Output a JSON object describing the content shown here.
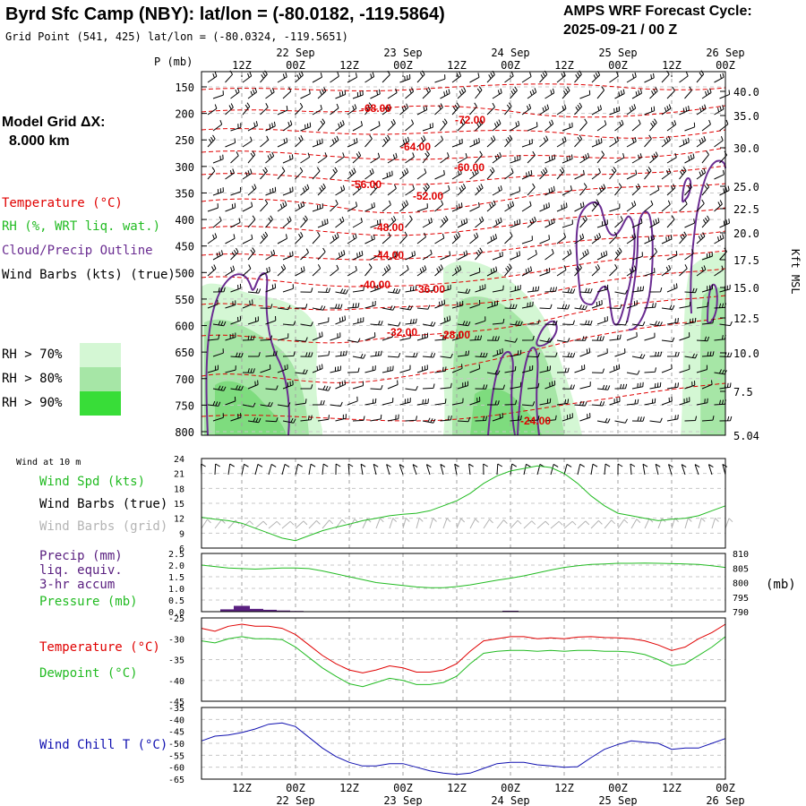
{
  "header": {
    "title": "Byrd Sfc Camp (NBY):  lat/lon = (-80.0182, -119.5864)",
    "subtitle": "Grid Point (541, 425) lat/lon = (-80.0324, -119.5651)",
    "cycle_line1": "AMPS WRF Forecast Cycle:",
    "cycle_line2": "2025-09-21 / 00  Z"
  },
  "colors": {
    "temperature": "#e00000",
    "rh": "#22bb22",
    "cloud": "#6a2c91",
    "wind": "#000000",
    "wind_grid": "#b4b4b4",
    "precip": "#5a2080",
    "pressure": "#22bb22",
    "dewpoint": "#22bb22",
    "wind_chill": "#1010b0",
    "rh70": "#d4f7d4",
    "rh80": "#a6e6a6",
    "rh90": "#38dd38"
  },
  "time_axis": {
    "top_labels": [
      "12Z",
      "00Z",
      "12Z",
      "00Z",
      "12Z",
      "00Z",
      "12Z",
      "00Z",
      "12Z",
      "00Z"
    ],
    "top_dates": [
      "22 Sep",
      "23 Sep",
      "24 Sep",
      "25 Sep",
      "26 Sep"
    ],
    "bottom_labels": [
      "12Z",
      "00Z",
      "12Z",
      "00Z",
      "12Z",
      "00Z",
      "12Z",
      "00Z",
      "12Z",
      "00Z"
    ],
    "bottom_dates": [
      "22 Sep",
      "23 Sep",
      "24 Sep",
      "25 Sep",
      "26 Sep"
    ],
    "start_hour": 3,
    "end_hour": 120
  },
  "upper_panel": {
    "p_axis_label": "P (mb)",
    "p_ticks": [
      "150",
      "200",
      "250",
      "300",
      "350",
      "400",
      "450",
      "500",
      "550",
      "600",
      "650",
      "700",
      "750",
      "800"
    ],
    "h_ticks": [
      "40.0",
      "35.0",
      "30.0",
      "25.0",
      "22.5",
      "20.0",
      "17.5",
      "15.0",
      "12.5",
      "10.0",
      "7.5",
      "5.04"
    ],
    "h_axis_label": "Kft MSL",
    "model_grid_line1": "Model Grid ΔX:",
    "model_grid_line2": "8.000 km",
    "legend_temperature": "Temperature (°C)",
    "legend_rh": "RH (%, WRT liq. wat.)",
    "legend_cloud": "Cloud/Precip Outline",
    "legend_wind": "Wind Barbs (kts) (true)",
    "rh_key": [
      "RH > 70%",
      "RH > 80%",
      "RH > 90%"
    ],
    "contour_labels": [
      "-68.00",
      "-72.00",
      "-64.00",
      "-60.00",
      "-56.00",
      "-52.00",
      "-48.00",
      "-44.00",
      "-40.00",
      "-36.00",
      "-32.00",
      "-28.00",
      "-24.00"
    ]
  },
  "wind_panel": {
    "title": "Wind at 10 m",
    "label_speed": "Wind Spd (kts)",
    "label_barbs_true": "Wind Barbs (true)",
    "label_barbs_grid": "Wind Barbs (grid)",
    "y_ticks": [
      "24",
      "21",
      "18",
      "15",
      "12",
      "9",
      "6"
    ]
  },
  "precip_panel": {
    "label1": "Precip (mm)",
    "label2": "liq. equiv.",
    "label3": "3-hr accum",
    "label4": "Pressure (mb)",
    "y_ticks_left": [
      "2.5",
      "2.0",
      "1.5",
      "1.0",
      "0.5",
      "0.0"
    ],
    "y_ticks_right": [
      "810",
      "805",
      "800",
      "795",
      "790"
    ],
    "right_unit": "(mb)"
  },
  "temp_panel": {
    "label_temp": "Temperature (°C)",
    "label_dew": "Dewpoint (°C)",
    "y_ticks": [
      "-25",
      "-30",
      "-35",
      "-40",
      "-45"
    ]
  },
  "chill_panel": {
    "label": "Wind Chill T (°C)",
    "y_ticks": [
      "-35",
      "-40",
      "-45",
      "-50",
      "-55",
      "-60",
      "-65"
    ]
  },
  "chart_data": [
    {
      "type": "line",
      "panel": "wind_speed",
      "x_hours": [
        3,
        6,
        9,
        12,
        15,
        18,
        21,
        24,
        27,
        30,
        33,
        36,
        39,
        42,
        45,
        48,
        51,
        54,
        57,
        60,
        63,
        66,
        69,
        72,
        75,
        78,
        81,
        84,
        87,
        90,
        93,
        96,
        99,
        102,
        105,
        108,
        111,
        114,
        117,
        120
      ],
      "series": [
        {
          "name": "Wind Spd (kts)",
          "values": [
            12.2,
            11.8,
            11.5,
            11.0,
            10.0,
            9.0,
            8.0,
            7.5,
            8.5,
            9.5,
            10.2,
            10.8,
            11.5,
            12.0,
            12.5,
            12.8,
            13.0,
            13.5,
            14.5,
            15.5,
            17.0,
            19.0,
            20.5,
            21.5,
            22.0,
            22.5,
            22.2,
            21.0,
            19.0,
            16.5,
            14.5,
            13.0,
            12.5,
            12.0,
            11.5,
            11.8,
            12.0,
            12.5,
            13.5,
            14.5
          ]
        }
      ],
      "ylim": [
        6,
        24
      ]
    },
    {
      "type": "line",
      "panel": "pressure_precip",
      "x_hours": [
        3,
        6,
        9,
        12,
        15,
        18,
        21,
        24,
        27,
        30,
        33,
        36,
        39,
        42,
        45,
        48,
        51,
        54,
        57,
        60,
        63,
        66,
        69,
        72,
        75,
        78,
        81,
        84,
        87,
        90,
        93,
        96,
        99,
        102,
        105,
        108,
        111,
        114,
        117,
        120
      ],
      "series": [
        {
          "name": "Pressure (mb)",
          "values": [
            806.0,
            805.5,
            805.0,
            804.8,
            804.6,
            804.8,
            805.0,
            805.0,
            804.8,
            804.0,
            803.0,
            802.0,
            801.0,
            800.0,
            799.5,
            799.0,
            798.5,
            798.2,
            798.2,
            798.6,
            799.2,
            800.0,
            800.8,
            801.5,
            802.3,
            803.3,
            804.3,
            805.2,
            805.8,
            806.2,
            806.4,
            806.6,
            806.6,
            806.7,
            806.6,
            806.5,
            806.4,
            806.2,
            805.8,
            805.2
          ]
        }
      ],
      "precip_bars": [
        {
          "x_hours": 9,
          "value": 0.1
        },
        {
          "x_hours": 12,
          "value": 0.25
        },
        {
          "x_hours": 15,
          "value": 0.12
        },
        {
          "x_hours": 18,
          "value": 0.08
        },
        {
          "x_hours": 21,
          "value": 0.05
        },
        {
          "x_hours": 24,
          "value": 0.03
        },
        {
          "x_hours": 72,
          "value": 0.04
        }
      ],
      "ylim_left": [
        0,
        2.5
      ],
      "ylim_right": [
        790,
        810
      ]
    },
    {
      "type": "line",
      "panel": "temperature_dewpoint",
      "x_hours": [
        3,
        6,
        9,
        12,
        15,
        18,
        21,
        24,
        27,
        30,
        33,
        36,
        39,
        42,
        45,
        48,
        51,
        54,
        57,
        60,
        63,
        66,
        69,
        72,
        75,
        78,
        81,
        84,
        87,
        90,
        93,
        96,
        99,
        102,
        105,
        108,
        111,
        114,
        117,
        120
      ],
      "series": [
        {
          "name": "Temperature (°C)",
          "values": [
            -27.5,
            -28.2,
            -27.0,
            -26.5,
            -27.0,
            -27.0,
            -27.5,
            -29.0,
            -31.5,
            -34.0,
            -36.0,
            -37.5,
            -38.2,
            -37.5,
            -36.5,
            -37.0,
            -38.0,
            -38.0,
            -37.5,
            -36.0,
            -33.0,
            -30.5,
            -30.0,
            -29.5,
            -29.5,
            -30.0,
            -29.8,
            -30.0,
            -29.6,
            -29.5,
            -29.7,
            -29.8,
            -30.0,
            -30.5,
            -31.5,
            -32.8,
            -32.0,
            -30.0,
            -28.5,
            -26.5
          ]
        },
        {
          "name": "Dewpoint (°C)",
          "values": [
            -30.5,
            -31.0,
            -30.0,
            -29.5,
            -30.0,
            -30.0,
            -30.2,
            -32.0,
            -34.5,
            -37.0,
            -39.0,
            -40.8,
            -41.5,
            -40.5,
            -39.5,
            -40.0,
            -41.0,
            -41.0,
            -40.5,
            -39.0,
            -36.0,
            -33.5,
            -33.0,
            -32.8,
            -32.8,
            -33.0,
            -32.8,
            -33.0,
            -32.8,
            -32.8,
            -33.0,
            -33.0,
            -33.2,
            -33.8,
            -35.0,
            -36.5,
            -36.0,
            -34.0,
            -32.0,
            -29.5
          ]
        }
      ],
      "ylim": [
        -45,
        -25
      ]
    },
    {
      "type": "line",
      "panel": "wind_chill",
      "x_hours": [
        3,
        6,
        9,
        12,
        15,
        18,
        21,
        24,
        27,
        30,
        33,
        36,
        39,
        42,
        45,
        48,
        51,
        54,
        57,
        60,
        63,
        66,
        69,
        72,
        75,
        78,
        81,
        84,
        87,
        90,
        93,
        96,
        99,
        102,
        105,
        108,
        111,
        114,
        117,
        120
      ],
      "series": [
        {
          "name": "Wind Chill T (°C)",
          "values": [
            -49.0,
            -47.0,
            -46.5,
            -45.5,
            -44.0,
            -42.0,
            -41.5,
            -43.0,
            -47.5,
            -52.0,
            -55.5,
            -58.0,
            -59.5,
            -59.5,
            -58.5,
            -58.5,
            -60.0,
            -61.5,
            -62.5,
            -63.0,
            -62.5,
            -60.5,
            -58.5,
            -58.0,
            -58.0,
            -59.0,
            -59.5,
            -60.0,
            -59.8,
            -56.0,
            -52.5,
            -50.5,
            -49.0,
            -49.5,
            -50.0,
            -52.5,
            -52.0,
            -52.0,
            -50.0,
            -48.0
          ]
        }
      ],
      "ylim": [
        -65,
        -35
      ]
    }
  ]
}
